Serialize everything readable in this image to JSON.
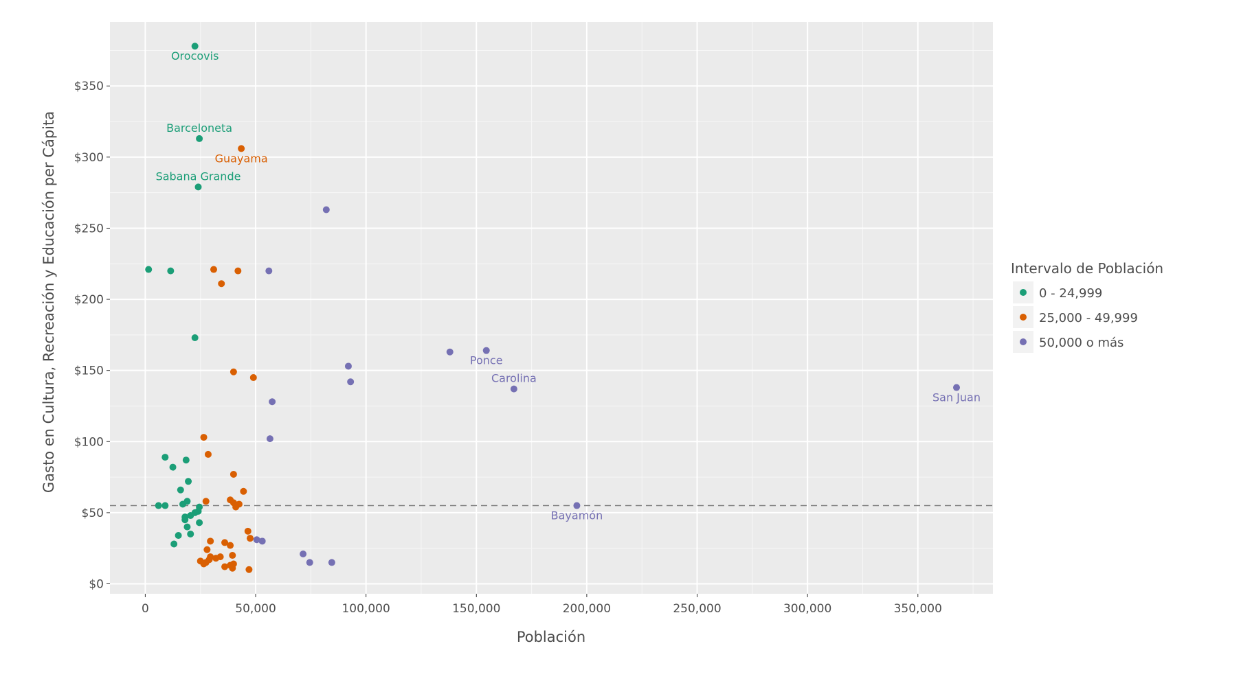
{
  "chart_data": {
    "type": "scatter",
    "title": "",
    "xlabel": "Población",
    "ylabel": "Gasto en Cultura, Recreación y Educación per Cápita",
    "xlim": [
      -16000,
      384000
    ],
    "ylim": [
      -7,
      395
    ],
    "x_ticks": [
      0,
      50000,
      100000,
      150000,
      200000,
      250000,
      300000,
      350000
    ],
    "x_tick_labels": [
      "0",
      "50,000",
      "100,000",
      "150,000",
      "200,000",
      "250,000",
      "300,000",
      "350,000"
    ],
    "y_ticks": [
      0,
      50,
      100,
      150,
      200,
      250,
      300,
      350
    ],
    "y_tick_labels": [
      "$0",
      "$50",
      "$100",
      "$150",
      "$200",
      "$250",
      "$300",
      "$350"
    ],
    "grid": true,
    "reference_line": {
      "y": 55,
      "style": "dashed",
      "color": "#808080"
    },
    "legend": {
      "title": "Intervalo de Población",
      "position": "right",
      "entries": [
        {
          "label": "0 - 24,999",
          "color": "#1b9e77"
        },
        {
          "label": "25,000 - 49,999",
          "color": "#d95f02"
        },
        {
          "label": "50,000 o más",
          "color": "#7570b3"
        }
      ]
    },
    "series": [
      {
        "name": "0 - 24,999",
        "color": "#1b9e77",
        "points": [
          {
            "x": 22500,
            "y": 378
          },
          {
            "x": 24500,
            "y": 313
          },
          {
            "x": 24000,
            "y": 279
          },
          {
            "x": 1500,
            "y": 221
          },
          {
            "x": 11500,
            "y": 220
          },
          {
            "x": 22500,
            "y": 173
          },
          {
            "x": 9000,
            "y": 89
          },
          {
            "x": 18500,
            "y": 87
          },
          {
            "x": 12500,
            "y": 82
          },
          {
            "x": 19500,
            "y": 72
          },
          {
            "x": 16000,
            "y": 66
          },
          {
            "x": 19000,
            "y": 58
          },
          {
            "x": 17000,
            "y": 56
          },
          {
            "x": 6000,
            "y": 55
          },
          {
            "x": 9000,
            "y": 55
          },
          {
            "x": 24500,
            "y": 54
          },
          {
            "x": 24000,
            "y": 51
          },
          {
            "x": 22500,
            "y": 50
          },
          {
            "x": 20500,
            "y": 48
          },
          {
            "x": 18000,
            "y": 47
          },
          {
            "x": 18000,
            "y": 45
          },
          {
            "x": 24500,
            "y": 43
          },
          {
            "x": 19000,
            "y": 40
          },
          {
            "x": 15000,
            "y": 34
          },
          {
            "x": 20500,
            "y": 35
          },
          {
            "x": 13000,
            "y": 28
          }
        ],
        "labels": [
          {
            "text": "Orocovis",
            "x": 22500,
            "y": 378,
            "pos": "below"
          },
          {
            "text": "Barceloneta",
            "x": 24500,
            "y": 313,
            "pos": "above"
          },
          {
            "text": "Sabana Grande",
            "x": 24000,
            "y": 279,
            "pos": "above"
          }
        ]
      },
      {
        "name": "25,000 - 49,999",
        "color": "#d95f02",
        "points": [
          {
            "x": 43500,
            "y": 306
          },
          {
            "x": 31000,
            "y": 221
          },
          {
            "x": 42000,
            "y": 220
          },
          {
            "x": 34500,
            "y": 211
          },
          {
            "x": 40000,
            "y": 149
          },
          {
            "x": 49000,
            "y": 145
          },
          {
            "x": 26500,
            "y": 103
          },
          {
            "x": 28500,
            "y": 91
          },
          {
            "x": 40000,
            "y": 77
          },
          {
            "x": 44500,
            "y": 65
          },
          {
            "x": 38500,
            "y": 59
          },
          {
            "x": 27500,
            "y": 58
          },
          {
            "x": 40000,
            "y": 57
          },
          {
            "x": 42500,
            "y": 56
          },
          {
            "x": 41000,
            "y": 54
          },
          {
            "x": 46500,
            "y": 37
          },
          {
            "x": 47500,
            "y": 32
          },
          {
            "x": 29500,
            "y": 30
          },
          {
            "x": 36000,
            "y": 29
          },
          {
            "x": 38500,
            "y": 27
          },
          {
            "x": 28000,
            "y": 24
          },
          {
            "x": 29500,
            "y": 19
          },
          {
            "x": 39500,
            "y": 20
          },
          {
            "x": 32000,
            "y": 18
          },
          {
            "x": 34000,
            "y": 19
          },
          {
            "x": 29000,
            "y": 17
          },
          {
            "x": 25000,
            "y": 16
          },
          {
            "x": 27500,
            "y": 15
          },
          {
            "x": 26500,
            "y": 14
          },
          {
            "x": 40000,
            "y": 14
          },
          {
            "x": 38500,
            "y": 13
          },
          {
            "x": 36000,
            "y": 12
          },
          {
            "x": 39500,
            "y": 11
          },
          {
            "x": 47000,
            "y": 10
          }
        ],
        "labels": [
          {
            "text": "Guayama",
            "x": 43500,
            "y": 306,
            "pos": "below"
          }
        ]
      },
      {
        "name": "50,000 o más",
        "color": "#7570b3",
        "points": [
          {
            "x": 82000,
            "y": 263
          },
          {
            "x": 56000,
            "y": 220
          },
          {
            "x": 138000,
            "y": 163
          },
          {
            "x": 154500,
            "y": 164
          },
          {
            "x": 92000,
            "y": 153
          },
          {
            "x": 93000,
            "y": 142
          },
          {
            "x": 167000,
            "y": 137
          },
          {
            "x": 367500,
            "y": 138
          },
          {
            "x": 57500,
            "y": 128
          },
          {
            "x": 56500,
            "y": 102
          },
          {
            "x": 195500,
            "y": 55
          },
          {
            "x": 50500,
            "y": 31
          },
          {
            "x": 53000,
            "y": 30
          },
          {
            "x": 71500,
            "y": 21
          },
          {
            "x": 74500,
            "y": 15
          },
          {
            "x": 84500,
            "y": 15
          }
        ],
        "labels": [
          {
            "text": "Ponce",
            "x": 154500,
            "y": 164,
            "pos": "below"
          },
          {
            "text": "Carolina",
            "x": 167000,
            "y": 137,
            "pos": "above"
          },
          {
            "text": "San Juan",
            "x": 367500,
            "y": 138,
            "pos": "below"
          },
          {
            "text": "Bayamón",
            "x": 195500,
            "y": 55,
            "pos": "below"
          }
        ]
      }
    ]
  }
}
